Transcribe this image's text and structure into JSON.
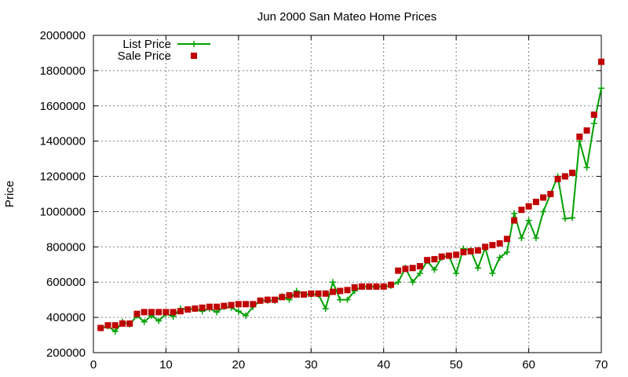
{
  "chart_data": {
    "type": "line",
    "title": "Jun 2000 San Mateo Home Prices",
    "xlabel": "",
    "ylabel": "Price",
    "xlim": [
      0,
      70
    ],
    "ylim": [
      200000,
      2000000
    ],
    "xticks": [
      0,
      10,
      20,
      30,
      40,
      50,
      60,
      70
    ],
    "yticks": [
      200000,
      400000,
      600000,
      800000,
      1000000,
      1200000,
      1400000,
      1600000,
      1800000,
      2000000
    ],
    "grid": true,
    "legend": "top-left",
    "x": [
      1,
      2,
      3,
      4,
      5,
      6,
      7,
      8,
      9,
      10,
      11,
      12,
      13,
      14,
      15,
      16,
      17,
      18,
      19,
      20,
      21,
      22,
      23,
      24,
      25,
      26,
      27,
      28,
      29,
      30,
      31,
      32,
      33,
      34,
      35,
      36,
      37,
      38,
      39,
      40,
      41,
      42,
      43,
      44,
      45,
      46,
      47,
      48,
      49,
      50,
      51,
      52,
      53,
      54,
      55,
      56,
      57,
      58,
      59,
      60,
      61,
      62,
      63,
      64,
      65,
      66,
      67,
      68,
      69,
      70
    ],
    "series": [
      {
        "name": "List Price",
        "style": "line-points",
        "color": "#00a000",
        "marker": "plus",
        "values": [
          340000,
          350000,
          320000,
          375000,
          360000,
          410000,
          375000,
          410000,
          380000,
          420000,
          405000,
          450000,
          445000,
          450000,
          435000,
          450000,
          430000,
          460000,
          455000,
          435000,
          410000,
          460000,
          495000,
          495000,
          495000,
          520000,
          500000,
          550000,
          530000,
          530000,
          530000,
          450000,
          600000,
          500000,
          500000,
          550000,
          575000,
          575000,
          575000,
          575000,
          580000,
          600000,
          680000,
          600000,
          650000,
          720000,
          670000,
          740000,
          750000,
          650000,
          790000,
          780000,
          680000,
          795000,
          650000,
          740000,
          770000,
          990000,
          850000,
          950000,
          850000,
          1000000,
          1100000,
          1200000,
          960000,
          965000,
          1400000,
          1250000,
          1500000,
          1700000
        ]
      },
      {
        "name": "Sale Price",
        "style": "points",
        "color": "#c00000",
        "marker": "square",
        "values": [
          340000,
          355000,
          355000,
          365000,
          365000,
          420000,
          430000,
          430000,
          430000,
          430000,
          430000,
          435000,
          445000,
          450000,
          455000,
          460000,
          460000,
          465000,
          470000,
          475000,
          475000,
          475000,
          495000,
          500000,
          500000,
          515000,
          525000,
          530000,
          530000,
          535000,
          535000,
          535000,
          545000,
          550000,
          555000,
          570000,
          575000,
          575000,
          575000,
          575000,
          585000,
          665000,
          675000,
          680000,
          690000,
          725000,
          730000,
          745000,
          750000,
          755000,
          770000,
          775000,
          780000,
          800000,
          810000,
          820000,
          845000,
          950000,
          1010000,
          1030000,
          1055000,
          1080000,
          1100000,
          1185000,
          1200000,
          1220000,
          1425000,
          1460000,
          1550000,
          1850000
        ]
      }
    ]
  }
}
